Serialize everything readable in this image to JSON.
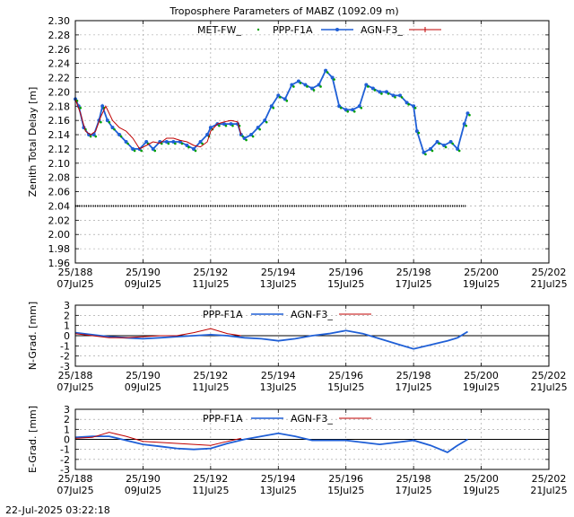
{
  "title": "Troposphere Parameters of MABZ (1092.09 m)",
  "timestamp": "22-Jul-2025 03:22:18",
  "colors": {
    "met": "#00a000",
    "ppp": "#1f5fd6",
    "agn": "#c00000",
    "hline": "#000000"
  },
  "chart_data": [
    {
      "type": "scatter",
      "panel": "ztd",
      "ylabel": "Zenith Total Delay [m]",
      "ylim": [
        1.96,
        2.3
      ],
      "yticks": [
        1.96,
        1.98,
        2.0,
        2.02,
        2.04,
        2.06,
        2.08,
        2.1,
        2.12,
        2.14,
        2.16,
        2.18,
        2.2,
        2.22,
        2.24,
        2.26,
        2.28,
        2.3
      ],
      "ytick_labels": [
        "1.96",
        "1.98",
        "2.00",
        "2.02",
        "2.04",
        "2.06",
        "2.08",
        "2.10",
        "2.12",
        "2.14",
        "2.16",
        "2.18",
        "2.20",
        "2.22",
        "2.24",
        "2.26",
        "2.28",
        "2.30"
      ],
      "xlim": [
        188,
        202
      ],
      "xticks": [
        188,
        190,
        192,
        194,
        196,
        198,
        200,
        202
      ],
      "xtick_labels_top": [
        "25/188",
        "25/190",
        "25/192",
        "25/194",
        "25/196",
        "25/198",
        "25/200",
        "25/202"
      ],
      "xtick_labels_bottom": [
        "07Jul25",
        "09Jul25",
        "11Jul25",
        "13Jul25",
        "15Jul25",
        "17Jul25",
        "19Jul25",
        "21Jul25"
      ],
      "grid": true,
      "legend_position": "top",
      "series": [
        {
          "name": "MET-FW_",
          "style": "dots",
          "x": [
            188.0,
            188.15,
            188.4,
            188.7,
            189.0,
            189.3,
            189.6,
            189.9,
            190.2,
            190.5,
            190.8,
            191.1,
            191.5,
            191.9,
            192.2,
            192.5,
            192.8,
            193.0,
            193.2
          ],
          "y": [
            2.04,
            2.04,
            2.04,
            2.04,
            2.04,
            2.04,
            2.04,
            2.04,
            2.04,
            2.04,
            2.04,
            2.04,
            2.04,
            2.04,
            2.04,
            2.04,
            2.04,
            2.04,
            2.04
          ],
          "constant_line": true,
          "x_end": 199.55
        },
        {
          "name": "PPP-F1A",
          "style": "points",
          "x": [
            188.0,
            188.1,
            188.25,
            188.4,
            188.55,
            188.7,
            188.8,
            188.95,
            189.1,
            189.3,
            189.5,
            189.7,
            189.9,
            190.1,
            190.3,
            190.5,
            190.7,
            190.9,
            191.1,
            191.3,
            191.5,
            191.7,
            191.9,
            192.0,
            192.2,
            192.4,
            192.6,
            192.8,
            192.9,
            193.0,
            193.2,
            193.4,
            193.6,
            193.8,
            194.0,
            194.2,
            194.4,
            194.6,
            194.8,
            195.0,
            195.2,
            195.4,
            195.6,
            195.8,
            196.0,
            196.2,
            196.4,
            196.6,
            196.8,
            197.0,
            197.2,
            197.4,
            197.6,
            197.8,
            198.0,
            198.1,
            198.3,
            198.5,
            198.7,
            198.9,
            199.1,
            199.3,
            199.5,
            199.6
          ],
          "y": [
            2.19,
            2.18,
            2.15,
            2.14,
            2.14,
            2.16,
            2.18,
            2.16,
            2.15,
            2.14,
            2.13,
            2.12,
            2.12,
            2.13,
            2.12,
            2.13,
            2.13,
            2.13,
            2.13,
            2.125,
            2.12,
            2.13,
            2.14,
            2.15,
            2.155,
            2.155,
            2.155,
            2.155,
            2.14,
            2.135,
            2.14,
            2.15,
            2.16,
            2.18,
            2.195,
            2.19,
            2.21,
            2.215,
            2.21,
            2.205,
            2.21,
            2.23,
            2.22,
            2.18,
            2.175,
            2.175,
            2.18,
            2.21,
            2.205,
            2.2,
            2.2,
            2.195,
            2.195,
            2.185,
            2.18,
            2.145,
            2.115,
            2.12,
            2.13,
            2.125,
            2.13,
            2.12,
            2.155,
            2.17
          ]
        },
        {
          "name": "AGN-F3_",
          "style": "line",
          "x": [
            188.0,
            188.15,
            188.3,
            188.45,
            188.6,
            188.75,
            188.9,
            189.1,
            189.3,
            189.5,
            189.7,
            189.9,
            190.1,
            190.3,
            190.5,
            190.7,
            190.9,
            191.1,
            191.3,
            191.5,
            191.7,
            191.9,
            192.0,
            192.2,
            192.4,
            192.6,
            192.8,
            192.9
          ],
          "y": [
            2.19,
            2.17,
            2.145,
            2.14,
            2.145,
            2.165,
            2.18,
            2.16,
            2.15,
            2.145,
            2.135,
            2.12,
            2.125,
            2.13,
            2.128,
            2.135,
            2.135,
            2.132,
            2.13,
            2.125,
            2.123,
            2.13,
            2.145,
            2.155,
            2.158,
            2.16,
            2.158,
            2.14
          ]
        }
      ]
    },
    {
      "type": "line",
      "panel": "ngrad",
      "ylabel": "N-Grad. [mm]",
      "ylim": [
        -3,
        3
      ],
      "yticks": [
        -3,
        -2,
        -1,
        0,
        1,
        2,
        3
      ],
      "ytick_labels": [
        "-3",
        "-2",
        "-1",
        "0",
        "1",
        "2",
        "3"
      ],
      "xlim": [
        188,
        202
      ],
      "xticks": [
        188,
        190,
        192,
        194,
        196,
        198,
        200,
        202
      ],
      "xtick_labels_top": [
        "25/188",
        "25/190",
        "25/192",
        "25/194",
        "25/196",
        "25/198",
        "25/200",
        "25/202"
      ],
      "xtick_labels_bottom": [
        "07Jul25",
        "09Jul25",
        "11Jul25",
        "13Jul25",
        "15Jul25",
        "17Jul25",
        "19Jul25",
        "21Jul25"
      ],
      "grid": true,
      "legend_position": "top",
      "zero_line": true,
      "series": [
        {
          "name": "PPP-F1A",
          "x": [
            188.0,
            188.5,
            189.0,
            189.5,
            190.0,
            190.5,
            191.0,
            191.5,
            192.0,
            192.5,
            193.0,
            193.5,
            194.0,
            194.5,
            195.0,
            195.5,
            196.0,
            196.5,
            197.0,
            197.5,
            198.0,
            198.5,
            199.0,
            199.3,
            199.6
          ],
          "y": [
            0.3,
            0.1,
            -0.1,
            -0.2,
            -0.3,
            -0.2,
            -0.1,
            0.0,
            0.1,
            0.0,
            -0.2,
            -0.3,
            -0.5,
            -0.3,
            0.0,
            0.2,
            0.5,
            0.2,
            -0.3,
            -0.8,
            -1.3,
            -0.9,
            -0.5,
            -0.2,
            0.4
          ]
        },
        {
          "name": "AGN-F3_",
          "x": [
            188.0,
            188.5,
            189.0,
            189.5,
            190.0,
            190.5,
            191.0,
            191.5,
            192.0,
            192.5,
            192.9
          ],
          "y": [
            0.2,
            0.0,
            -0.2,
            -0.2,
            -0.1,
            0.0,
            0.0,
            0.3,
            0.7,
            0.2,
            0.0
          ]
        }
      ]
    },
    {
      "type": "line",
      "panel": "egrad",
      "ylabel": "E-Grad. [mm]",
      "ylim": [
        -3,
        3
      ],
      "yticks": [
        -3,
        -2,
        -1,
        0,
        1,
        2,
        3
      ],
      "ytick_labels": [
        "-3",
        "-2",
        "-1",
        "0",
        "1",
        "2",
        "3"
      ],
      "xlim": [
        188,
        202
      ],
      "xticks": [
        188,
        190,
        192,
        194,
        196,
        198,
        200,
        202
      ],
      "xtick_labels_top": [
        "25/188",
        "25/190",
        "25/192",
        "25/194",
        "25/196",
        "25/198",
        "25/200",
        "25/202"
      ],
      "xtick_labels_bottom": [
        "07Jul25",
        "09Jul25",
        "11Jul25",
        "13Jul25",
        "15Jul25",
        "17Jul25",
        "19Jul25",
        "21Jul25"
      ],
      "grid": true,
      "legend_position": "top",
      "zero_line": true,
      "series": [
        {
          "name": "PPP-F1A",
          "x": [
            188.0,
            188.5,
            189.0,
            189.5,
            190.0,
            190.5,
            191.0,
            191.5,
            192.0,
            192.5,
            193.0,
            193.5,
            194.0,
            194.5,
            195.0,
            195.5,
            196.0,
            196.5,
            197.0,
            197.5,
            198.0,
            198.5,
            199.0,
            199.3,
            199.6
          ],
          "y": [
            0.2,
            0.3,
            0.3,
            -0.1,
            -0.5,
            -0.7,
            -0.9,
            -1.0,
            -0.9,
            -0.4,
            0.0,
            0.3,
            0.6,
            0.3,
            -0.1,
            -0.1,
            -0.1,
            -0.3,
            -0.5,
            -0.3,
            -0.1,
            -0.6,
            -1.3,
            -0.6,
            0.0
          ]
        },
        {
          "name": "AGN-F3_",
          "x": [
            188.0,
            188.5,
            189.0,
            189.5,
            190.0,
            190.5,
            191.0,
            191.5,
            192.0,
            192.5,
            192.9
          ],
          "y": [
            0.1,
            0.2,
            0.7,
            0.3,
            -0.2,
            -0.3,
            -0.4,
            -0.5,
            -0.6,
            -0.2,
            0.1
          ]
        }
      ]
    }
  ]
}
